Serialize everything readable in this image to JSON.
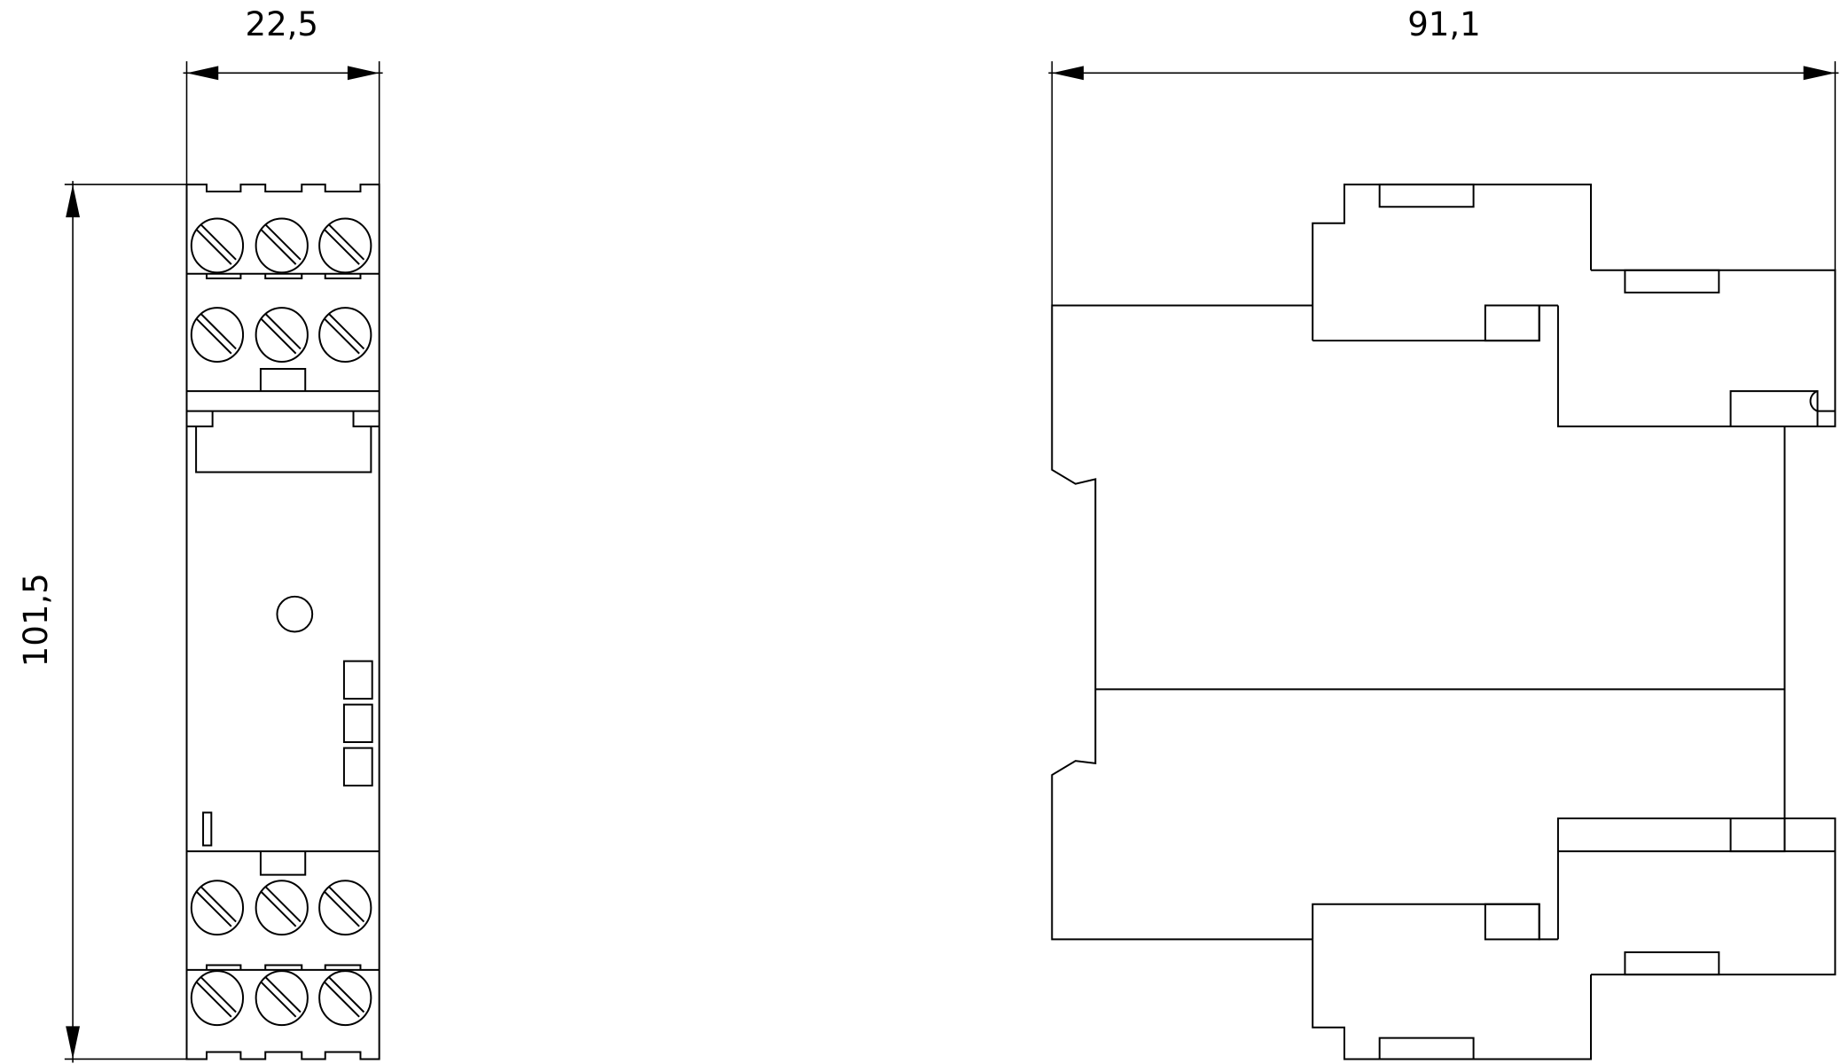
{
  "drawing": {
    "front_view": {
      "width_dimension": "22,5",
      "height_dimension": "101,5",
      "terminal_rows": 4,
      "screws_per_row": 3
    },
    "side_view": {
      "depth_dimension": "91,1"
    },
    "line_color": "#000000",
    "background_color": "#ffffff"
  }
}
